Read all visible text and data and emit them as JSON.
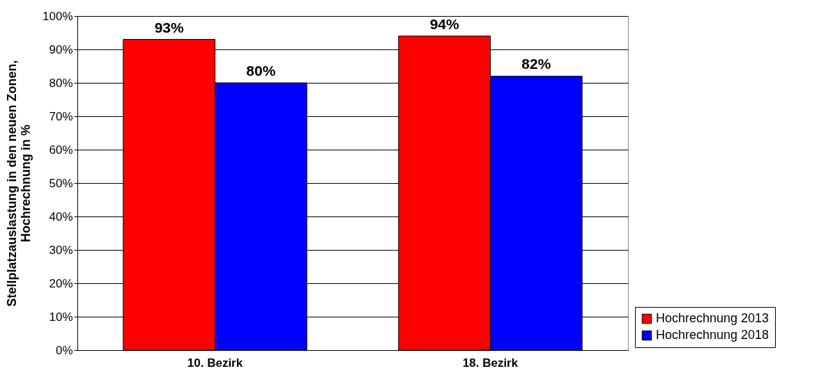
{
  "chart_data": {
    "type": "bar",
    "ylabel": "Stellplatzauslastung in den neuen Zonen,\nHochrechnung in %",
    "categories": [
      "10. Bezirk",
      "18. Bezirk"
    ],
    "series": [
      {
        "name": "Hochrechnung 2013",
        "color": "#ff0000",
        "values": [
          93,
          94
        ],
        "value_labels": [
          "93%",
          "94%"
        ]
      },
      {
        "name": "Hochrechnung 2018",
        "color": "#0000ff",
        "values": [
          80,
          82
        ],
        "value_labels": [
          "80%",
          "82%"
        ]
      }
    ],
    "ylim": [
      0,
      100
    ],
    "yticks": [
      {
        "value": 0,
        "label": "0%"
      },
      {
        "value": 10,
        "label": "10%"
      },
      {
        "value": 20,
        "label": "20%"
      },
      {
        "value": 30,
        "label": "30%"
      },
      {
        "value": 40,
        "label": "40%"
      },
      {
        "value": 50,
        "label": "50%"
      },
      {
        "value": 60,
        "label": "60%"
      },
      {
        "value": 70,
        "label": "70%"
      },
      {
        "value": 80,
        "label": "80%"
      },
      {
        "value": 90,
        "label": "90%"
      },
      {
        "value": 100,
        "label": "100%"
      }
    ],
    "grid": true,
    "legend": "bottom right"
  }
}
